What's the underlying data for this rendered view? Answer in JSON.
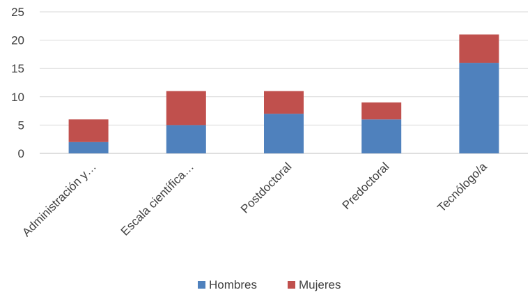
{
  "chart_data": {
    "type": "bar",
    "stacked": true,
    "categories": [
      "Administración y…",
      "Escala científica…",
      "Postdoctoral",
      "Predoctoral",
      "Tecnólogo/a"
    ],
    "series": [
      {
        "name": "Hombres",
        "values": [
          2,
          5,
          7,
          6,
          16
        ],
        "color": "#4f81bd"
      },
      {
        "name": "Mujeres",
        "values": [
          4,
          6,
          4,
          3,
          5
        ],
        "color": "#c0504d"
      }
    ],
    "yticks": [
      0,
      5,
      10,
      15,
      20,
      25
    ],
    "ylim": [
      0,
      25
    ],
    "grid": true,
    "legend": "bottom"
  }
}
